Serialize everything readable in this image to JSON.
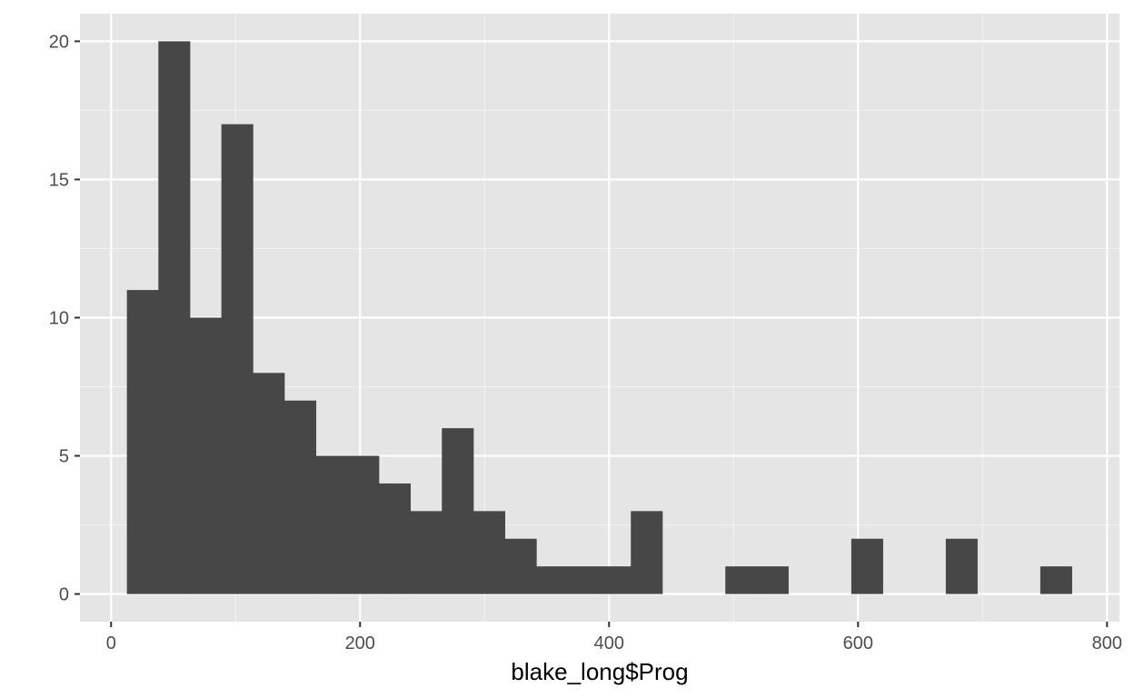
{
  "chart_data": {
    "type": "bar",
    "xlabel": "blake_long$Prog",
    "ylabel": "",
    "title": "",
    "xlim": [
      -25,
      810
    ],
    "ylim": [
      -1,
      21
    ],
    "xticks": [
      0,
      200,
      400,
      600,
      800
    ],
    "xtick_labels": [
      "0",
      "200",
      "400",
      "600",
      "800"
    ],
    "yticks": [
      0,
      5,
      10,
      15,
      20
    ],
    "ytick_labels": [
      "0",
      "5",
      "10",
      "15",
      "20"
    ],
    "grid": true,
    "bin_width": 25.3,
    "bins": [
      {
        "x0": 12.7,
        "count": 11
      },
      {
        "x0": 38.0,
        "count": 20
      },
      {
        "x0": 63.3,
        "count": 10
      },
      {
        "x0": 88.6,
        "count": 17
      },
      {
        "x0": 113.9,
        "count": 8
      },
      {
        "x0": 139.2,
        "count": 7
      },
      {
        "x0": 164.5,
        "count": 5
      },
      {
        "x0": 189.8,
        "count": 5
      },
      {
        "x0": 215.1,
        "count": 4
      },
      {
        "x0": 240.4,
        "count": 3
      },
      {
        "x0": 265.7,
        "count": 6
      },
      {
        "x0": 291.0,
        "count": 3
      },
      {
        "x0": 316.3,
        "count": 2
      },
      {
        "x0": 341.6,
        "count": 1
      },
      {
        "x0": 366.9,
        "count": 1
      },
      {
        "x0": 392.2,
        "count": 1
      },
      {
        "x0": 417.5,
        "count": 3
      },
      {
        "x0": 442.8,
        "count": 0
      },
      {
        "x0": 468.1,
        "count": 0
      },
      {
        "x0": 493.4,
        "count": 1
      },
      {
        "x0": 518.7,
        "count": 1
      },
      {
        "x0": 544.0,
        "count": 0
      },
      {
        "x0": 569.3,
        "count": 0
      },
      {
        "x0": 594.6,
        "count": 2
      },
      {
        "x0": 619.9,
        "count": 0
      },
      {
        "x0": 645.2,
        "count": 0
      },
      {
        "x0": 670.5,
        "count": 2
      },
      {
        "x0": 695.8,
        "count": 0
      },
      {
        "x0": 721.1,
        "count": 0
      },
      {
        "x0": 746.4,
        "count": 1
      }
    ],
    "colors": {
      "panel": "#e5e5e5",
      "grid_major": "#ffffff",
      "grid_minor": "#f2f2f2",
      "bar": "#474747",
      "tick": "#333333"
    }
  }
}
